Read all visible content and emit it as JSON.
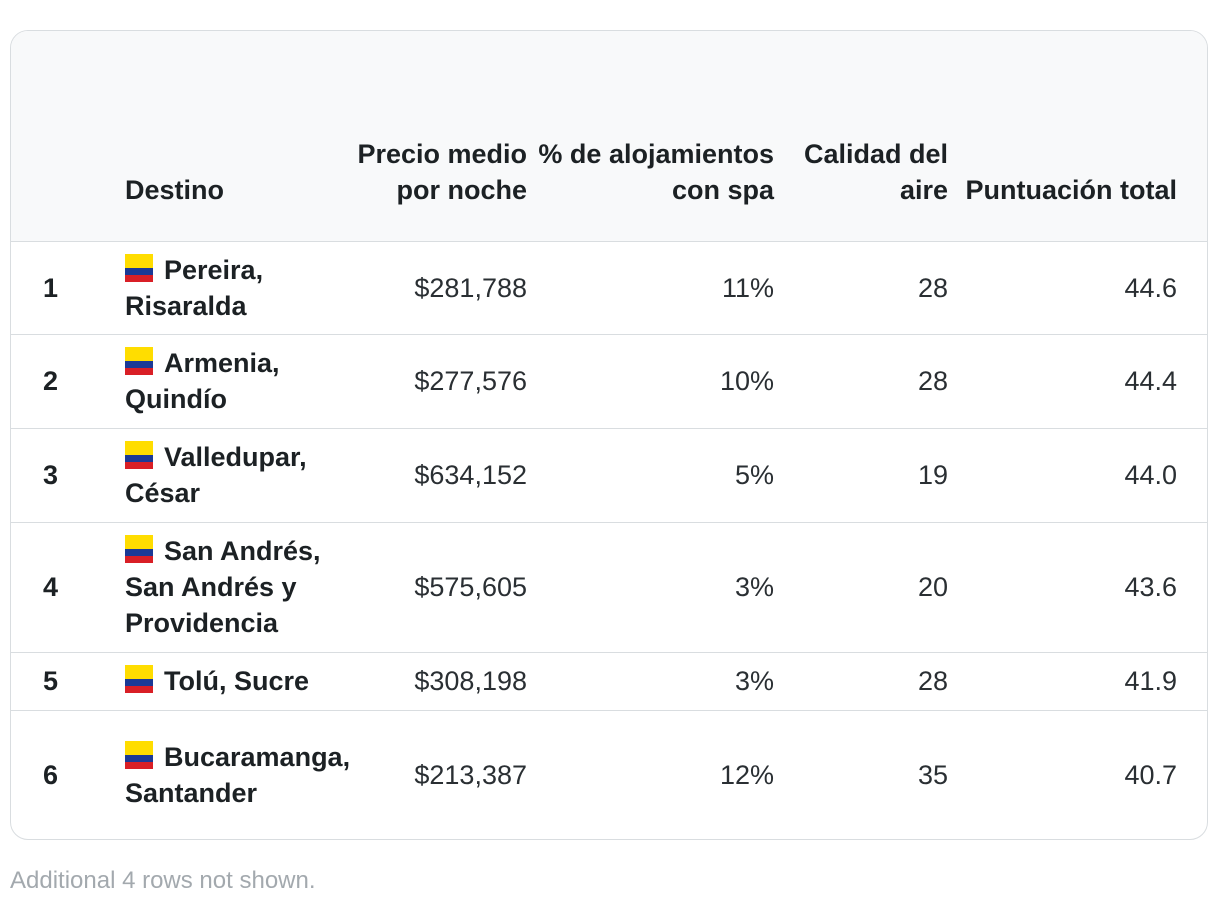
{
  "table": {
    "headers": {
      "rank": "",
      "destination": "Destino",
      "price": "Precio medio por noche",
      "spa": "% de alojamientos con spa",
      "air": "Calidad del aire",
      "score": "Puntuación total"
    },
    "rows": [
      {
        "rank": "1",
        "destination": "Pereira, Risaralda",
        "price": "$281,788",
        "spa": "11%",
        "air": "28",
        "score": "44.6",
        "flag": "colombia-flag-icon"
      },
      {
        "rank": "2",
        "destination": "Armenia, Quindío",
        "price": "$277,576",
        "spa": "10%",
        "air": "28",
        "score": "44.4",
        "flag": "colombia-flag-icon"
      },
      {
        "rank": "3",
        "destination": "Valledupar, César",
        "price": "$634,152",
        "spa": "5%",
        "air": "19",
        "score": "44.0",
        "flag": "colombia-flag-icon"
      },
      {
        "rank": "4",
        "destination": "San Andrés, San Andrés y Providencia",
        "price": "$575,605",
        "spa": "3%",
        "air": "20",
        "score": "43.6",
        "flag": "colombia-flag-icon"
      },
      {
        "rank": "5",
        "destination": "Tolú, Sucre",
        "price": "$308,198",
        "spa": "3%",
        "air": "28",
        "score": "41.9",
        "flag": "colombia-flag-icon"
      },
      {
        "rank": "6",
        "destination": "Bucaramanga, Santander",
        "price": "$213,387",
        "spa": "12%",
        "air": "35",
        "score": "40.7",
        "flag": "colombia-flag-icon"
      }
    ]
  },
  "footnote": "Additional 4 rows not shown.",
  "colors": {
    "flag_yellow": "#ffdd00",
    "flag_blue": "#1b3a96",
    "flag_red": "#d91f26",
    "header_bg": "#f8f9fa",
    "border": "#d9dde0"
  }
}
